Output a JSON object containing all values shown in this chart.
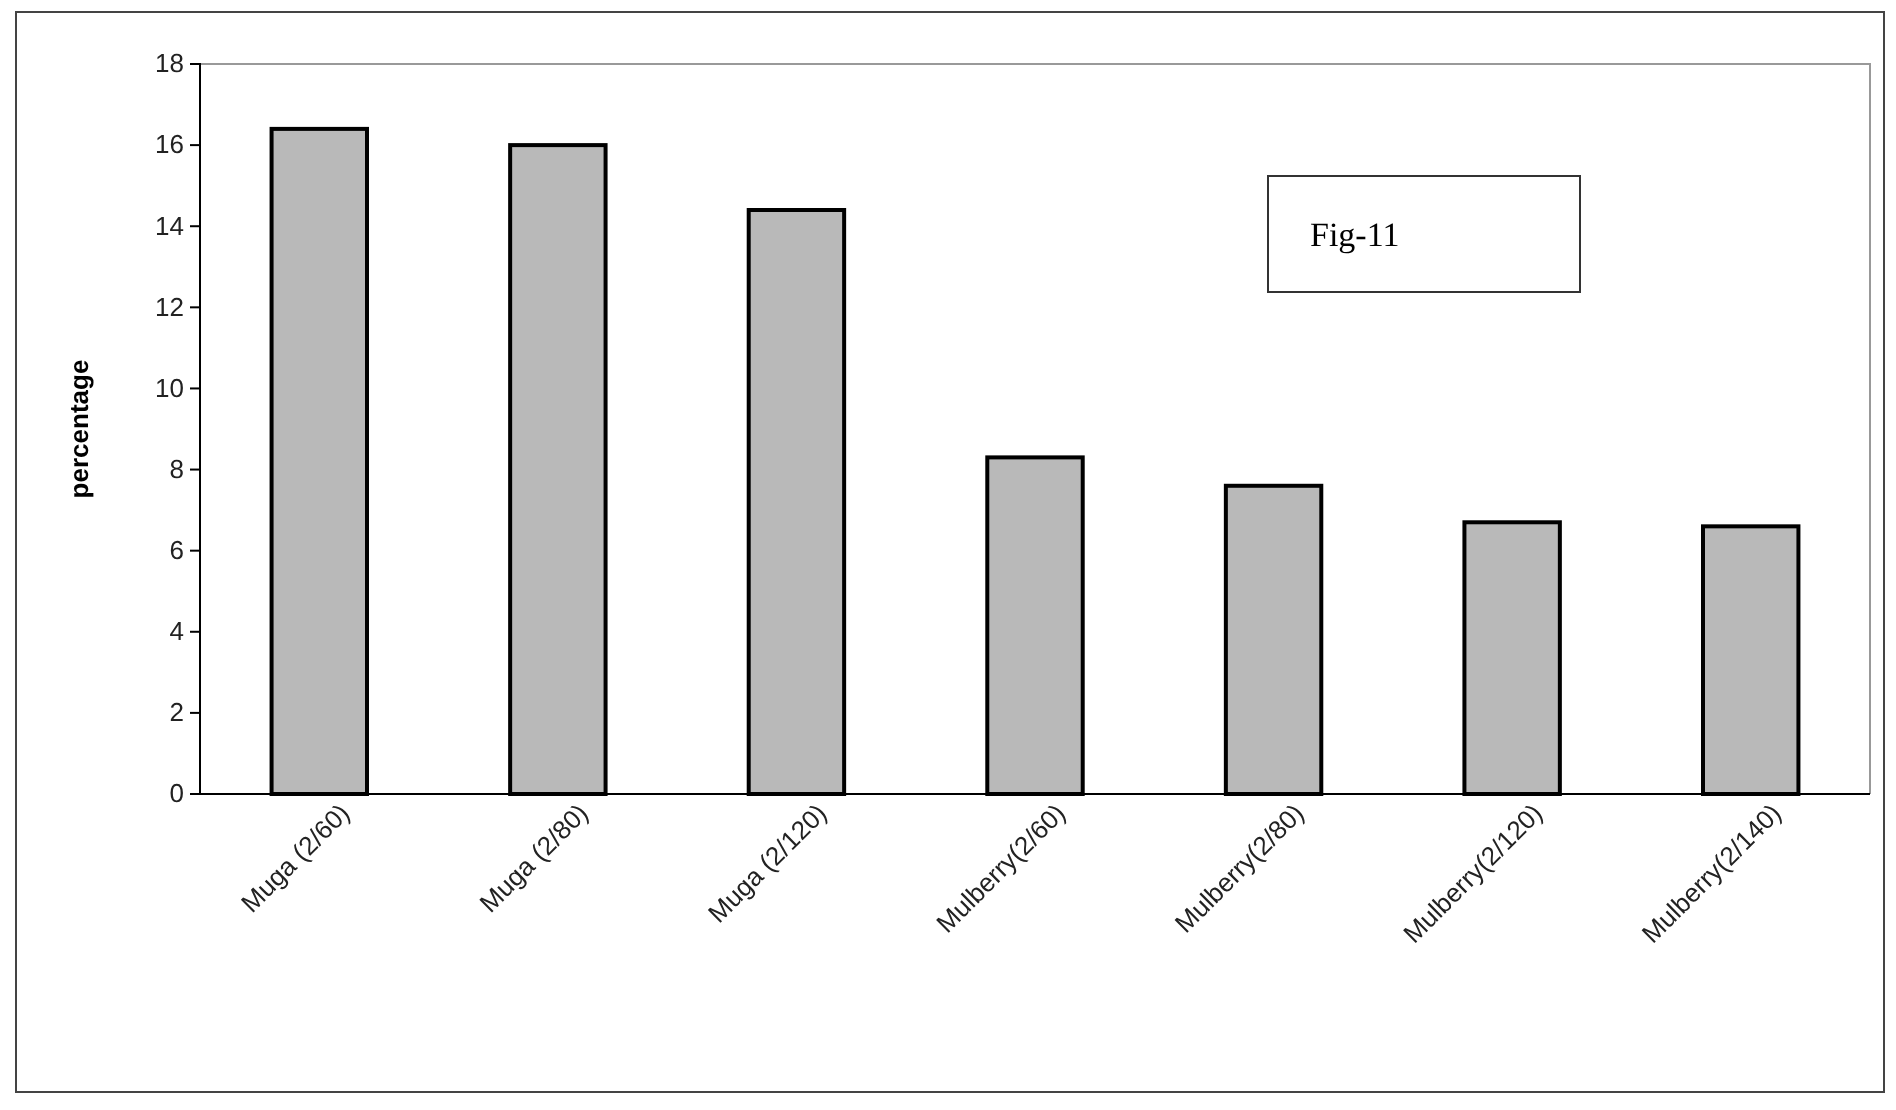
{
  "chart_data": {
    "type": "bar",
    "categories": [
      "Muga (2/60)",
      "Muga (2/80)",
      "Muga (2/120)",
      "Mulberry(2/60)",
      "Mulberry(2/80)",
      "Mulberry(2/120)",
      "Mulberry(2/140)"
    ],
    "values": [
      16.4,
      16.0,
      14.4,
      8.3,
      7.6,
      6.7,
      6.6
    ],
    "color": "#b9b9b9",
    "ylabel": "percentage",
    "ylim": [
      0,
      18
    ],
    "yticks": [
      0,
      2,
      4,
      6,
      8,
      10,
      12,
      14,
      16,
      18
    ],
    "annotations": [
      "Fig-11"
    ]
  }
}
